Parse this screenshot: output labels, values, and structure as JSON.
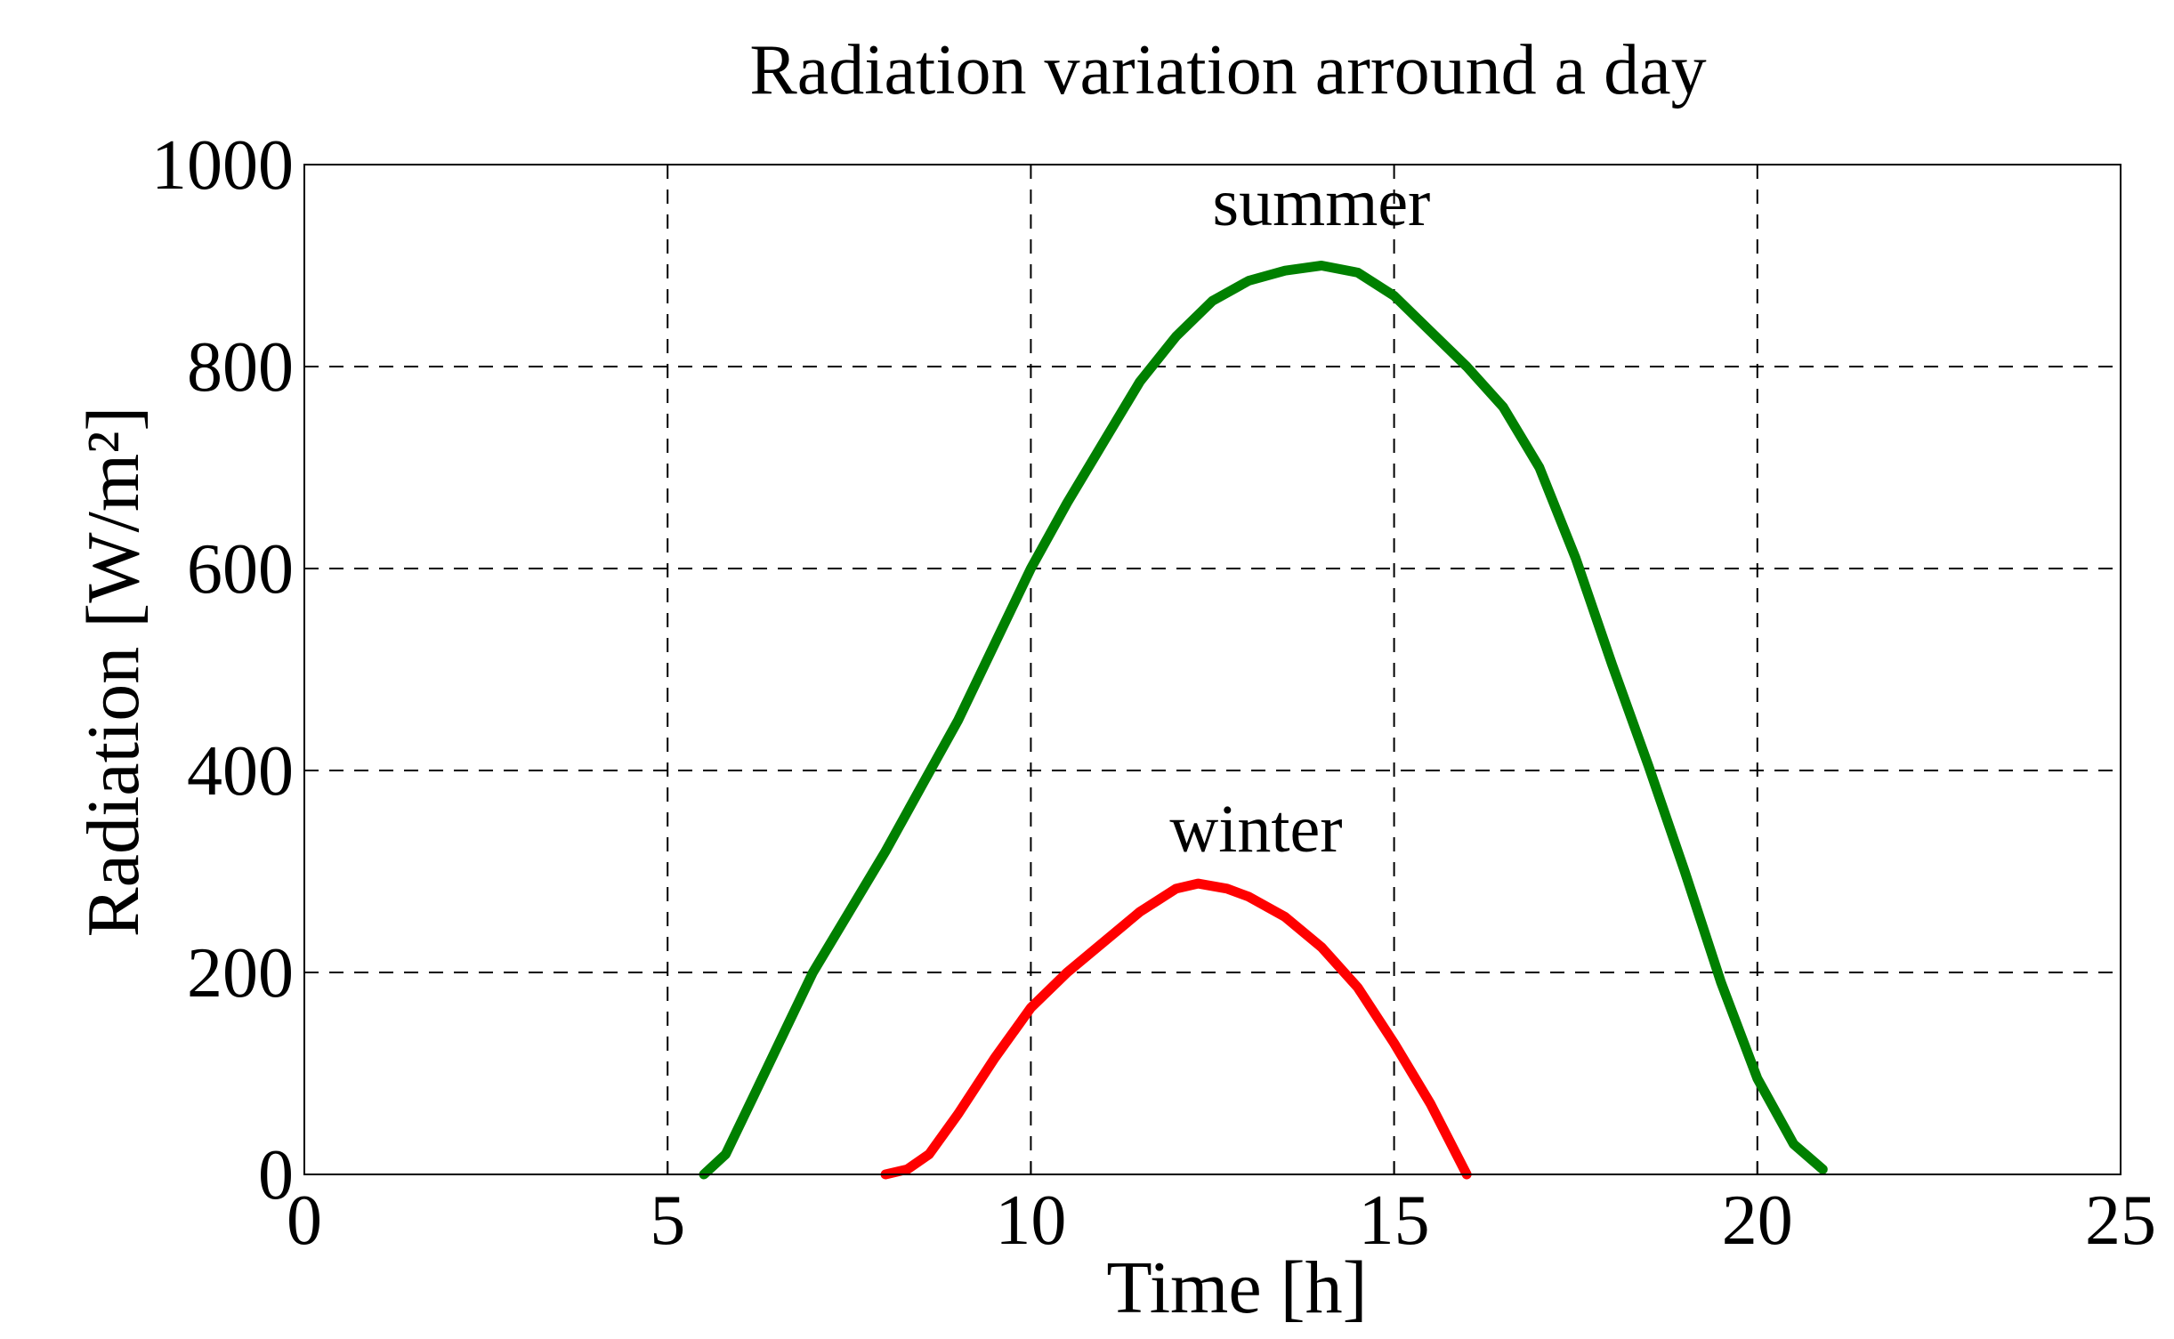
{
  "chart_data": {
    "type": "line",
    "title": "Radiation variation arround a day",
    "xlabel": "Time [h]",
    "ylabel": "Radiation [W/m²]",
    "xlim": [
      0,
      25
    ],
    "ylim": [
      0,
      1000
    ],
    "xticks": [
      0,
      5,
      10,
      15,
      20,
      25
    ],
    "yticks": [
      0,
      200,
      400,
      600,
      800,
      1000
    ],
    "xtick_labels": [
      "0",
      "5",
      "10",
      "15",
      "20",
      "25"
    ],
    "ytick_labels": [
      "0",
      "200",
      "400",
      "600",
      "800",
      "1000"
    ],
    "grid": true,
    "series": [
      {
        "name": "summer",
        "color": "#008000",
        "x": [
          5.5,
          5.8,
          6.2,
          6.6,
          7.0,
          7.5,
          8.0,
          8.5,
          9.0,
          9.5,
          10.0,
          10.5,
          11.0,
          11.5,
          12.0,
          12.5,
          13.0,
          13.5,
          14.0,
          14.5,
          15.0,
          15.5,
          16.0,
          16.5,
          17.0,
          17.5,
          18.0,
          18.5,
          19.0,
          19.5,
          20.0,
          20.5,
          20.9
        ],
        "values": [
          0,
          20,
          80,
          140,
          200,
          260,
          320,
          385,
          450,
          525,
          600,
          665,
          725,
          785,
          830,
          865,
          885,
          895,
          900,
          893,
          870,
          835,
          800,
          760,
          700,
          610,
          505,
          405,
          300,
          190,
          95,
          30,
          5
        ]
      },
      {
        "name": "winter",
        "color": "#ff0000",
        "x": [
          8.0,
          8.3,
          8.6,
          9.0,
          9.5,
          10.0,
          10.5,
          11.0,
          11.5,
          12.0,
          12.3,
          12.7,
          13.0,
          13.5,
          14.0,
          14.5,
          15.0,
          15.5,
          16.0
        ],
        "values": [
          0,
          5,
          20,
          60,
          115,
          165,
          200,
          230,
          260,
          283,
          288,
          283,
          275,
          255,
          225,
          185,
          130,
          70,
          0
        ]
      }
    ],
    "annotations": [
      {
        "text": "summer",
        "x": 14.0,
        "y": 940
      },
      {
        "text": "winter",
        "x": 13.1,
        "y": 320
      }
    ]
  }
}
